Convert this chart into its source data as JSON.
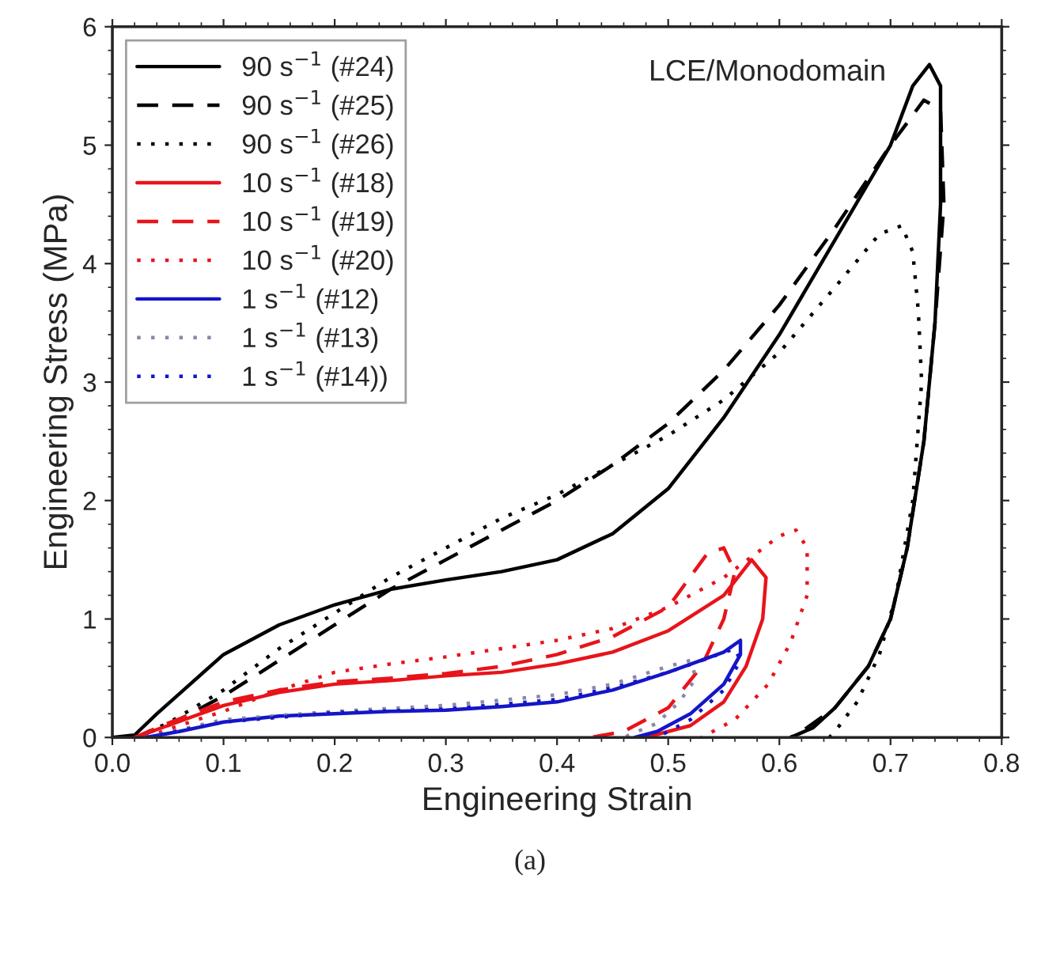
{
  "chart_data": {
    "type": "line",
    "xlabel": "Engineering Strain",
    "ylabel": "Engineering Stress (MPa)",
    "annotations": [
      "LCE/Monodomain",
      "(a)"
    ],
    "xlim": [
      0,
      0.8
    ],
    "ylim": [
      0,
      6
    ],
    "xticks": [
      {
        "value": 0,
        "label": "0.0"
      },
      {
        "value": 0.1,
        "label": "0.1"
      },
      {
        "value": 0.2,
        "label": "0.2"
      },
      {
        "value": 0.3,
        "label": "0.3"
      },
      {
        "value": 0.4,
        "label": "0.4"
      },
      {
        "value": 0.5,
        "label": "0.5"
      },
      {
        "value": 0.6,
        "label": "0.6"
      },
      {
        "value": 0.7,
        "label": "0.7"
      },
      {
        "value": 0.8,
        "label": "0.8"
      }
    ],
    "yticks": [
      0,
      1,
      2,
      3,
      4,
      5,
      6
    ],
    "grid": false,
    "legend": "top left",
    "marker": "none",
    "series": [
      {
        "name": "90 s$^{−1}$ (#24)",
        "color": "#000000",
        "line_style": "solid",
        "x": [
          0,
          0.02,
          0.04,
          0.07,
          0.1,
          0.15,
          0.2,
          0.25,
          0.3,
          0.35,
          0.4,
          0.45,
          0.5,
          0.55,
          0.6,
          0.65,
          0.7,
          0.72,
          0.735,
          0.745,
          0.745,
          0.74,
          0.73,
          0.715,
          0.7,
          0.68,
          0.65,
          0.63,
          0.61
        ],
        "values": [
          0,
          0.02,
          0.2,
          0.45,
          0.7,
          0.95,
          1.12,
          1.25,
          1.33,
          1.4,
          1.5,
          1.72,
          2.1,
          2.7,
          3.4,
          4.2,
          5.0,
          5.5,
          5.68,
          5.5,
          4.5,
          3.5,
          2.5,
          1.6,
          1.0,
          0.6,
          0.25,
          0.08,
          0
        ]
      },
      {
        "name": "90 s$^{−1}$ (#25)",
        "color": "#000000",
        "line_style": "dashed",
        "x": [
          0.02,
          0.05,
          0.1,
          0.15,
          0.2,
          0.25,
          0.3,
          0.35,
          0.4,
          0.45,
          0.5,
          0.55,
          0.6,
          0.65,
          0.7,
          0.73,
          0.745,
          0.748,
          0.74,
          0.73,
          0.715,
          0.7,
          0.68,
          0.65,
          0.62,
          0.61
        ],
        "values": [
          0,
          0.1,
          0.35,
          0.65,
          0.95,
          1.25,
          1.5,
          1.75,
          2.0,
          2.3,
          2.65,
          3.1,
          3.65,
          4.3,
          5.0,
          5.38,
          5.3,
          4.5,
          3.5,
          2.5,
          1.6,
          1.0,
          0.6,
          0.25,
          0.05,
          0
        ]
      },
      {
        "name": "90 s$^{−1}$ (#26)",
        "color": "#000000",
        "line_style": "dotted",
        "x": [
          0.02,
          0.05,
          0.1,
          0.15,
          0.2,
          0.25,
          0.3,
          0.35,
          0.4,
          0.45,
          0.5,
          0.55,
          0.6,
          0.65,
          0.69,
          0.71,
          0.72,
          0.725,
          0.728,
          0.72,
          0.705,
          0.69,
          0.67,
          0.65,
          0.645
        ],
        "values": [
          0,
          0.12,
          0.4,
          0.75,
          1.05,
          1.35,
          1.6,
          1.85,
          2.05,
          2.3,
          2.55,
          2.85,
          3.25,
          3.8,
          4.25,
          4.32,
          4.1,
          3.6,
          3.0,
          2.0,
          1.2,
          0.7,
          0.3,
          0.05,
          0
        ]
      },
      {
        "name": "10 s$^{−1}$ (#18)",
        "color": "#e8141b",
        "line_style": "solid",
        "x": [
          0.02,
          0.05,
          0.1,
          0.15,
          0.2,
          0.25,
          0.3,
          0.35,
          0.4,
          0.45,
          0.5,
          0.55,
          0.575,
          0.588,
          0.585,
          0.57,
          0.55,
          0.52,
          0.48
        ],
        "values": [
          0,
          0.1,
          0.27,
          0.38,
          0.45,
          0.48,
          0.52,
          0.55,
          0.62,
          0.72,
          0.9,
          1.2,
          1.5,
          1.35,
          1.0,
          0.6,
          0.3,
          0.1,
          0
        ]
      },
      {
        "name": "10 s$^{−1}$ (#19)",
        "color": "#e8141b",
        "line_style": "dashed",
        "x": [
          0.02,
          0.05,
          0.1,
          0.15,
          0.2,
          0.25,
          0.3,
          0.35,
          0.4,
          0.45,
          0.5,
          0.535,
          0.55,
          0.56,
          0.55,
          0.53,
          0.5,
          0.46,
          0.43
        ],
        "values": [
          0,
          0.12,
          0.3,
          0.4,
          0.47,
          0.5,
          0.54,
          0.6,
          0.7,
          0.85,
          1.1,
          1.55,
          1.6,
          1.4,
          1.0,
          0.6,
          0.25,
          0.05,
          0
        ]
      },
      {
        "name": "10 s$^{−1}$ (#20)",
        "color": "#e8141b",
        "line_style": "dotted",
        "x": [
          0.03,
          0.06,
          0.1,
          0.15,
          0.2,
          0.25,
          0.3,
          0.35,
          0.4,
          0.45,
          0.5,
          0.55,
          0.6,
          0.615,
          0.625,
          0.625,
          0.61,
          0.59,
          0.56,
          0.53
        ],
        "values": [
          0,
          0.1,
          0.22,
          0.4,
          0.55,
          0.62,
          0.68,
          0.75,
          0.82,
          0.92,
          1.1,
          1.35,
          1.7,
          1.75,
          1.6,
          1.2,
          0.8,
          0.45,
          0.15,
          0
        ]
      },
      {
        "name": "1 s$^{−1}$ (#12)",
        "color": "#1515c8",
        "line_style": "solid",
        "x": [
          0.03,
          0.06,
          0.1,
          0.15,
          0.2,
          0.25,
          0.3,
          0.35,
          0.4,
          0.45,
          0.5,
          0.55,
          0.565,
          0.565,
          0.55,
          0.52,
          0.49,
          0.47
        ],
        "values": [
          0,
          0.05,
          0.13,
          0.18,
          0.2,
          0.22,
          0.23,
          0.26,
          0.3,
          0.4,
          0.55,
          0.72,
          0.82,
          0.7,
          0.45,
          0.2,
          0.05,
          0
        ]
      },
      {
        "name": "1 s$^{−1}$ (#13)",
        "color": "#8888a8",
        "line_style": "dotted",
        "x": [
          0.03,
          0.1,
          0.2,
          0.3,
          0.4,
          0.45,
          0.5,
          0.52,
          0.525,
          0.51,
          0.49,
          0.46
        ],
        "values": [
          0,
          0.15,
          0.22,
          0.27,
          0.36,
          0.45,
          0.6,
          0.65,
          0.5,
          0.3,
          0.12,
          0
        ]
      },
      {
        "name": "1 s$^{−1}$ (#14))",
        "color": "#1515c8",
        "line_style": "dotted",
        "x": [
          0.03,
          0.1,
          0.2,
          0.3,
          0.4,
          0.45,
          0.5,
          0.56,
          0.565,
          0.55,
          0.52,
          0.49
        ],
        "values": [
          0,
          0.13,
          0.21,
          0.24,
          0.32,
          0.42,
          0.55,
          0.75,
          0.65,
          0.4,
          0.15,
          0
        ]
      }
    ]
  }
}
